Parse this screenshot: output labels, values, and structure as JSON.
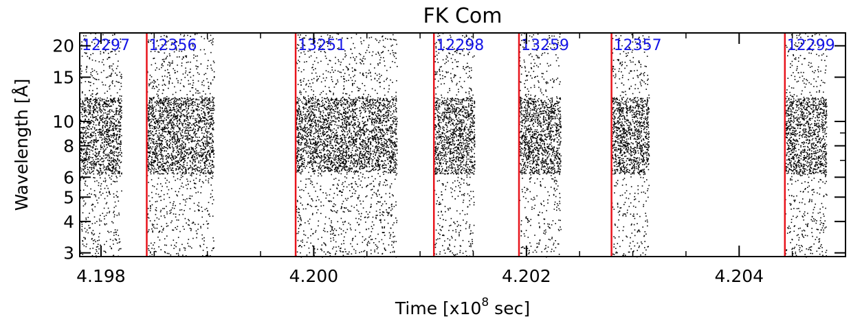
{
  "chart_data": {
    "type": "scatter",
    "title": "FK Com",
    "xlabel": "Time [x10",
    "xlabel_exponent": "8",
    "xlabel_suffix": " sec]",
    "ylabel": "Wavelength [Å]",
    "xlim": [
      4.1978,
      4.205
    ],
    "ylim": [
      2.9,
      22.5
    ],
    "yscale": "log",
    "grid": false,
    "x_ticks": [
      {
        "value": 4.198,
        "label": "4.198"
      },
      {
        "value": 4.2,
        "label": "4.200"
      },
      {
        "value": 4.202,
        "label": "4.202"
      },
      {
        "value": 4.204,
        "label": "4.204"
      }
    ],
    "y_ticks": [
      {
        "value": 3,
        "label": "3"
      },
      {
        "value": 4,
        "label": "4"
      },
      {
        "value": 5,
        "label": "5"
      },
      {
        "value": 6,
        "label": "6"
      },
      {
        "value": 8,
        "label": "8"
      },
      {
        "value": 10,
        "label": "10"
      },
      {
        "value": 15,
        "label": "15"
      },
      {
        "value": 20,
        "label": "20"
      }
    ],
    "observation_color": "#e8141c",
    "obsid_color": "#1414e6",
    "point_color": "#000000",
    "observations": [
      {
        "obsid": "12297",
        "start": 4.1978,
        "end": 4.19819,
        "dense": [
          6.2,
          12.5
        ]
      },
      {
        "obsid": "12356",
        "start": 4.19843,
        "end": 4.19906,
        "dense": [
          6.2,
          12.5
        ]
      },
      {
        "obsid": "13251",
        "start": 4.19983,
        "end": 4.20078,
        "dense": [
          6.3,
          12.5
        ]
      },
      {
        "obsid": "12298",
        "start": 4.20113,
        "end": 4.20151,
        "dense": [
          6.2,
          12.5
        ]
      },
      {
        "obsid": "13259",
        "start": 4.20193,
        "end": 4.20232,
        "dense": [
          6.2,
          12.5
        ]
      },
      {
        "obsid": "12357",
        "start": 4.2028,
        "end": 4.20315,
        "dense": [
          6.2,
          12.5
        ]
      },
      {
        "obsid": "12299",
        "start": 4.20443,
        "end": 4.20482,
        "dense": [
          6.2,
          12.5
        ]
      }
    ],
    "line_times": [
      4.19843,
      4.19983,
      4.20113,
      4.20193,
      4.2028,
      4.20443
    ]
  }
}
